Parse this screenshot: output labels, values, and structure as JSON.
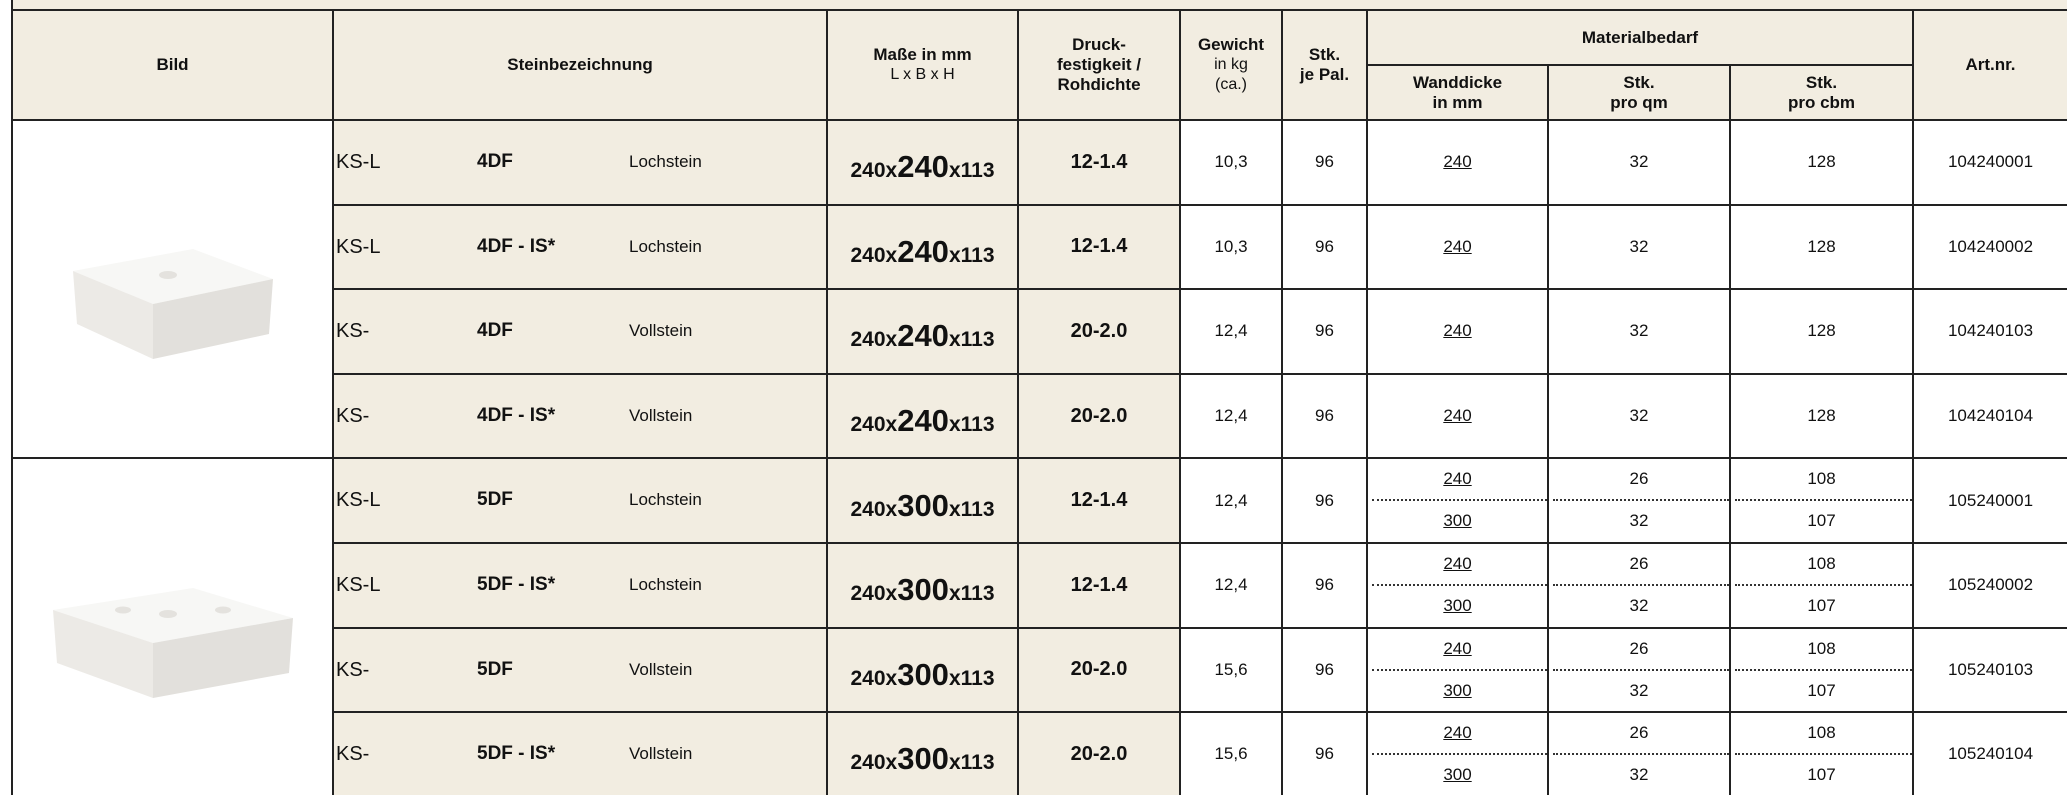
{
  "header": {
    "bild": "Bild",
    "steinbezeichnung": "Steinbezeichnung",
    "masse": [
      "Maße in mm",
      "L x B x H"
    ],
    "druck": [
      "Druck-",
      "festigkeit /",
      "Rohdichte"
    ],
    "gewicht": [
      "Gewicht",
      "in kg",
      "(ca.)"
    ],
    "stk": [
      "Stk.",
      "je Pal."
    ],
    "materialbedarf": "Materialbedarf",
    "wanddicke": [
      "Wanddicke",
      "in mm"
    ],
    "qm": [
      "Stk.",
      "pro qm"
    ],
    "cbm": [
      "Stk.",
      "pro cbm"
    ],
    "artnr": "Art.nr."
  },
  "rows": [
    {
      "prefix": "KS-L",
      "name": "4DF",
      "kind": "Lochstein",
      "dims": [
        "240x",
        "240",
        "x113"
      ],
      "druck": "12-1.4",
      "gewicht": "10,3",
      "stk": "96",
      "material": [
        {
          "wand": "240",
          "qm": "32",
          "cbm": "128"
        }
      ],
      "artnr": "104240001"
    },
    {
      "prefix": "KS-L",
      "name": "4DF - IS*",
      "kind": "Lochstein",
      "dims": [
        "240x",
        "240",
        "x113"
      ],
      "druck": "12-1.4",
      "gewicht": "10,3",
      "stk": "96",
      "material": [
        {
          "wand": "240",
          "qm": "32",
          "cbm": "128"
        }
      ],
      "artnr": "104240002"
    },
    {
      "prefix": "KS-",
      "name": "4DF",
      "kind": "Vollstein",
      "dims": [
        "240x",
        "240",
        "x113"
      ],
      "druck": "20-2.0",
      "gewicht": "12,4",
      "stk": "96",
      "material": [
        {
          "wand": "240",
          "qm": "32",
          "cbm": "128"
        }
      ],
      "artnr": "104240103"
    },
    {
      "prefix": "KS-",
      "name": "4DF - IS*",
      "kind": "Vollstein",
      "dims": [
        "240x",
        "240",
        "x113"
      ],
      "druck": "20-2.0",
      "gewicht": "12,4",
      "stk": "96",
      "material": [
        {
          "wand": "240",
          "qm": "32",
          "cbm": "128"
        }
      ],
      "artnr": "104240104"
    },
    {
      "prefix": "KS-L",
      "name": "5DF",
      "kind": "Lochstein",
      "dims": [
        "240x",
        "300",
        "x113"
      ],
      "druck": "12-1.4",
      "gewicht": "12,4",
      "stk": "96",
      "material": [
        {
          "wand": "240",
          "qm": "26",
          "cbm": "108"
        },
        {
          "wand": "300",
          "qm": "32",
          "cbm": "107"
        }
      ],
      "artnr": "105240001"
    },
    {
      "prefix": "KS-L",
      "name": "5DF - IS*",
      "kind": "Lochstein",
      "dims": [
        "240x",
        "300",
        "x113"
      ],
      "druck": "12-1.4",
      "gewicht": "12,4",
      "stk": "96",
      "material": [
        {
          "wand": "240",
          "qm": "26",
          "cbm": "108"
        },
        {
          "wand": "300",
          "qm": "32",
          "cbm": "107"
        }
      ],
      "artnr": "105240002"
    },
    {
      "prefix": "KS-",
      "name": "5DF",
      "kind": "Vollstein",
      "dims": [
        "240x",
        "300",
        "x113"
      ],
      "druck": "20-2.0",
      "gewicht": "15,6",
      "stk": "96",
      "material": [
        {
          "wand": "240",
          "qm": "26",
          "cbm": "108"
        },
        {
          "wand": "300",
          "qm": "32",
          "cbm": "107"
        }
      ],
      "artnr": "105240103"
    },
    {
      "prefix": "KS-",
      "name": "5DF - IS*",
      "kind": "Vollstein",
      "dims": [
        "240x",
        "300",
        "x113"
      ],
      "druck": "20-2.0",
      "gewicht": "15,6",
      "stk": "96",
      "material": [
        {
          "wand": "240",
          "qm": "26",
          "cbm": "108"
        },
        {
          "wand": "300",
          "qm": "32",
          "cbm": "107"
        }
      ],
      "artnr": "105240104"
    }
  ]
}
